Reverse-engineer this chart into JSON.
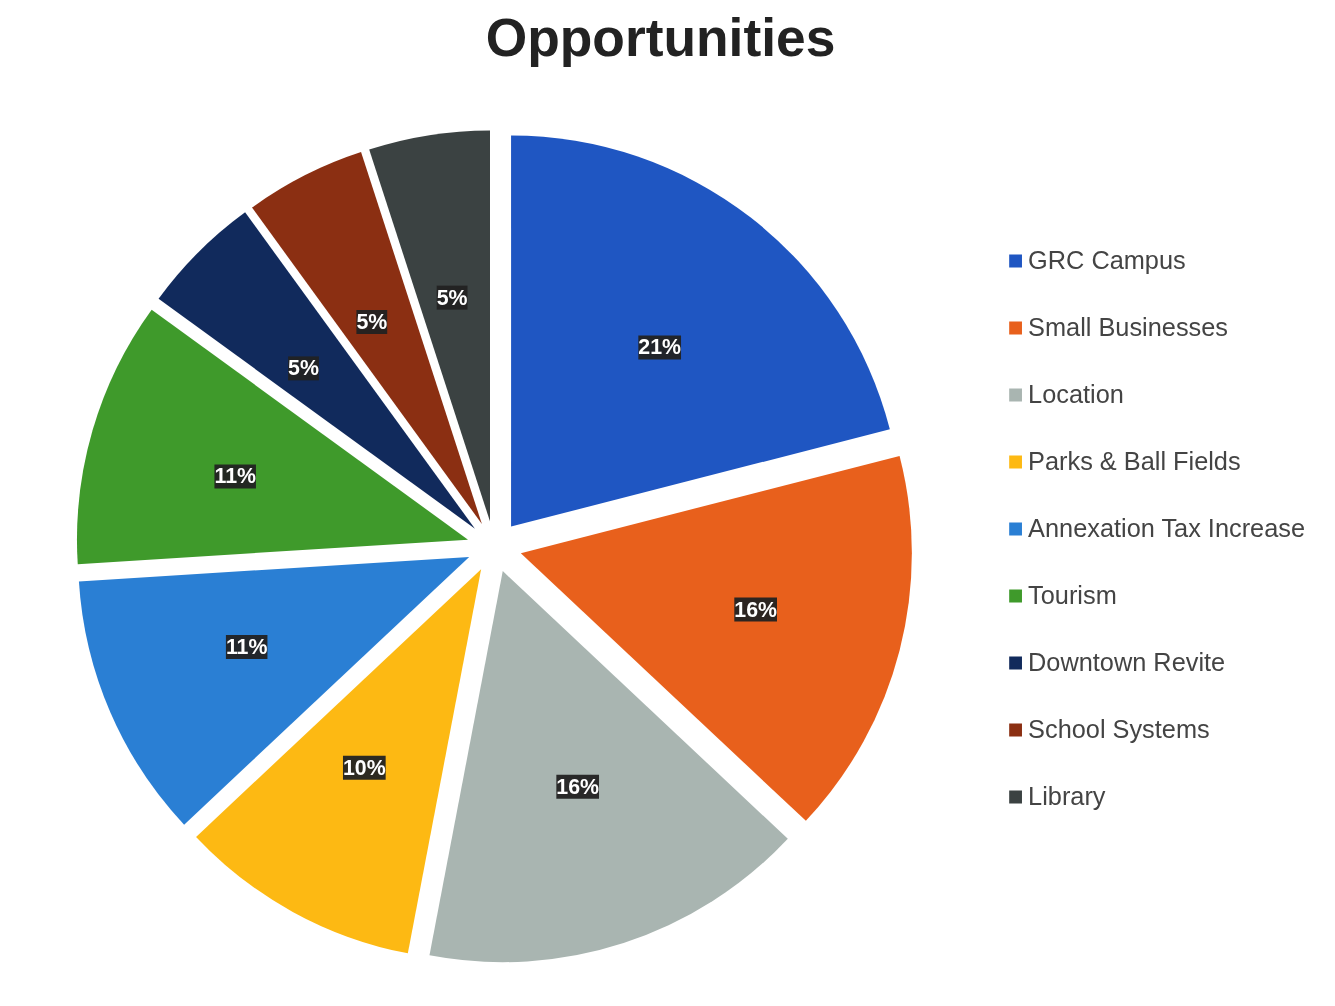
{
  "chart_data": {
    "type": "pie",
    "title": "Opportunities",
    "categories": [
      "GRC Campus",
      "Small Businesses",
      "Location",
      "Parks & Ball Fields",
      "Annexation Tax Increase",
      "Tourism",
      "Downtown Revite",
      "School Systems",
      "Library"
    ],
    "values": [
      21,
      16,
      16,
      10,
      11,
      11,
      5,
      5,
      5
    ],
    "colors": [
      "#1f56c2",
      "#e8601c",
      "#a9b5b1",
      "#fdb913",
      "#2a7fd4",
      "#3f9a2b",
      "#112a5c",
      "#8b2f12",
      "#3b4242"
    ],
    "value_labels": [
      "21%",
      "16%",
      "16%",
      "10%",
      "11%",
      "11%",
      "5%",
      "5%",
      "5%"
    ],
    "legend": "right"
  }
}
